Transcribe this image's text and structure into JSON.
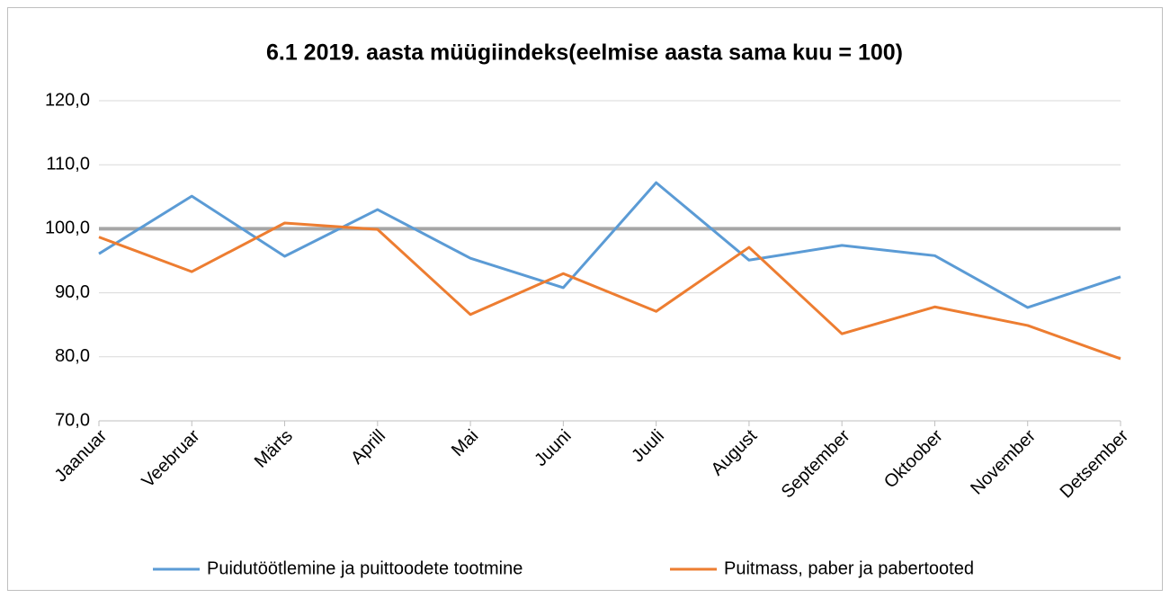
{
  "chart_data": {
    "type": "line",
    "title": "6.1 2019. aasta müügiindeks(eelmise aasta sama kuu = 100)",
    "categories": [
      "Jaanuar",
      "Veebruar",
      "Märts",
      "Aprill",
      "Mai",
      "Juuni",
      "Juuli",
      "August",
      "September",
      "Oktoober",
      "November",
      "Detsember"
    ],
    "series": [
      {
        "name": "Puidutöötlemine ja puittoodete tootmine",
        "color": "#5b9bd5",
        "values": [
          96.1,
          105.1,
          95.7,
          103.0,
          95.4,
          90.8,
          107.2,
          95.1,
          97.4,
          95.8,
          87.7,
          92.5
        ]
      },
      {
        "name": "Puitmass, paber ja pabertooted",
        "color": "#ed7d31",
        "values": [
          98.7,
          93.3,
          100.9,
          99.9,
          86.6,
          93.0,
          87.1,
          97.1,
          83.6,
          87.8,
          84.9,
          79.7
        ]
      }
    ],
    "reference_line": {
      "value": 100,
      "color": "#a6a6a6"
    },
    "ylim": [
      70,
      120
    ],
    "yticks": [
      {
        "value": 70,
        "label": "70,0"
      },
      {
        "value": 80,
        "label": "80,0"
      },
      {
        "value": 90,
        "label": "90,0"
      },
      {
        "value": 100,
        "label": "100,0"
      },
      {
        "value": 110,
        "label": "110,0"
      },
      {
        "value": 120,
        "label": "120,0"
      }
    ],
    "grid": true,
    "legend": "bottom"
  }
}
